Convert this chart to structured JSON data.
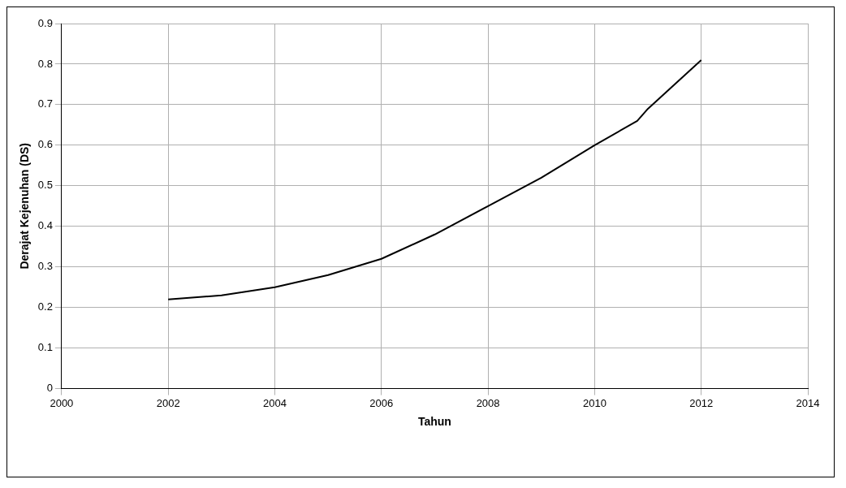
{
  "chart_data": {
    "type": "line",
    "xlabel": "Tahun",
    "ylabel": "Derajat Kejenuhan (DS)",
    "x": [
      2002,
      2003,
      2004,
      2005,
      2005.5,
      2006,
      2007,
      2008,
      2009,
      2010,
      2010.8,
      2011,
      2012
    ],
    "series": [
      {
        "color": "#000000",
        "values": [
          0.22,
          0.23,
          0.25,
          0.28,
          0.3,
          0.32,
          0.38,
          0.45,
          0.52,
          0.6,
          0.66,
          0.69,
          0.81
        ]
      }
    ],
    "xlim": [
      2000,
      2014
    ],
    "xticks": [
      2000,
      2002,
      2004,
      2006,
      2008,
      2010,
      2012,
      2014
    ],
    "ylim": [
      0,
      0.9
    ],
    "yticks": [
      0,
      0.1,
      0.2,
      0.3,
      0.4,
      0.5,
      0.6,
      0.7,
      0.8,
      0.9
    ],
    "grid": true,
    "legend": false,
    "marker": "none",
    "line_style": "solid"
  }
}
